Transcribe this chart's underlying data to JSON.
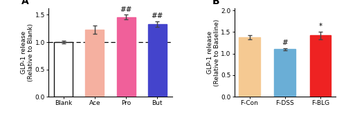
{
  "panel_A": {
    "categories": [
      "Blank",
      "Ace",
      "Pro",
      "But"
    ],
    "values": [
      1.0,
      1.23,
      1.46,
      1.33
    ],
    "errors": [
      0.03,
      0.08,
      0.04,
      0.055
    ],
    "colors": [
      "#ffffff",
      "#f5b0a0",
      "#f0609a",
      "#4444cc"
    ],
    "edge_colors": [
      "#111111",
      "#f5b0a0",
      "#f0609a",
      "#4444cc"
    ],
    "ylabel": "GLP-1 release\n(Relative to Blank)",
    "ylim": [
      0,
      1.62
    ],
    "yticks": [
      0.0,
      0.5,
      1.0,
      1.5
    ],
    "dashed_line_y": 1.0,
    "significance": [
      "",
      "",
      "##",
      "##"
    ],
    "panel_label": "A"
  },
  "panel_B": {
    "categories": [
      "F-Con",
      "F-DSS",
      "F-BLG"
    ],
    "values": [
      1.38,
      1.1,
      1.42
    ],
    "errors": [
      0.05,
      0.03,
      0.09
    ],
    "colors": [
      "#f5c992",
      "#6aaed6",
      "#ee2222"
    ],
    "edge_colors": [
      "#f5c992",
      "#6aaed6",
      "#ee2222"
    ],
    "ylabel": "GLP-1 release\n(Relative to Baseline)",
    "ylim": [
      0,
      2.05
    ],
    "yticks": [
      0.0,
      0.5,
      1.0,
      1.5,
      2.0
    ],
    "significance": [
      "",
      "#",
      "*"
    ],
    "panel_label": "B"
  },
  "bar_width": 0.6,
  "sig_fontsize": 7.5,
  "label_fontsize": 6.5,
  "tick_fontsize": 6.5,
  "panel_label_fontsize": 10
}
